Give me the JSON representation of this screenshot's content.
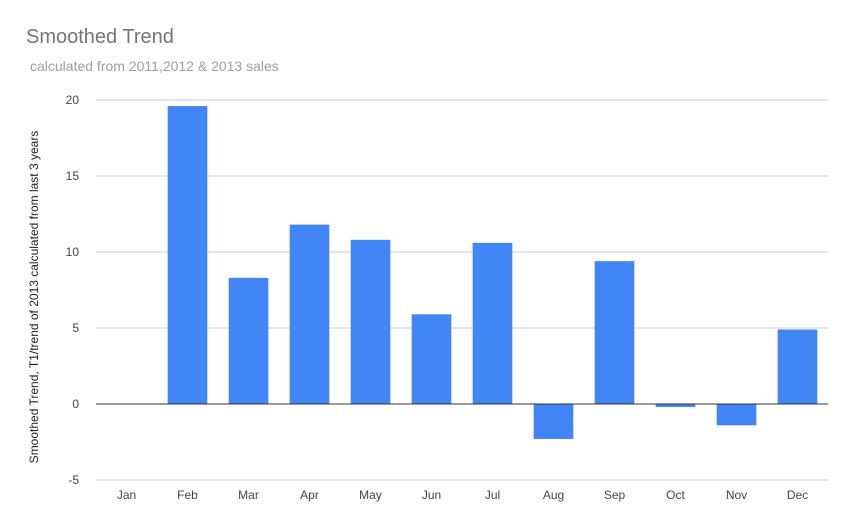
{
  "chart_data": {
    "type": "bar",
    "title": "Smoothed Trend",
    "subtitle": "calculated from 2011,2012 & 2013 sales",
    "xlabel": "",
    "ylabel": "Smoothed Trend, T1/trend of 2013 calculated from last 3 years",
    "categories": [
      "Jan",
      "Feb",
      "Mar",
      "Apr",
      "May",
      "Jun",
      "Jul",
      "Aug",
      "Sep",
      "Oct",
      "Nov",
      "Dec"
    ],
    "values": [
      0,
      19.6,
      8.3,
      11.8,
      10.8,
      5.9,
      10.6,
      -2.3,
      9.4,
      -0.2,
      -1.4,
      4.9
    ],
    "ylim": [
      -5,
      20
    ],
    "yticks": [
      -5,
      0,
      5,
      10,
      15,
      20
    ],
    "grid": true,
    "legend": "none",
    "bar_color": "#4285f4"
  }
}
